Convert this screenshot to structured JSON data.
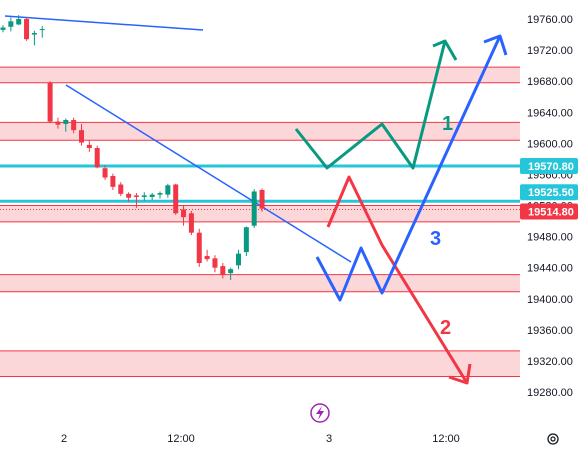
{
  "chart_data": {
    "type": "candlestick",
    "y_axis": {
      "ylim": [
        19250,
        19785
      ],
      "ticks": [
        19760,
        19720,
        19680,
        19640,
        19600,
        19560,
        19520,
        19480,
        19440,
        19400,
        19360,
        19320,
        19280
      ],
      "tick_labels": [
        "19760.00",
        "19720.00",
        "19680.00",
        "19640.00",
        "19600.00",
        "19560.00",
        "19520.00",
        "19480.00",
        "19440.00",
        "19400.00",
        "19360.00",
        "19320.00",
        "19280.00"
      ]
    },
    "x_axis": {
      "tick_labels": [
        "2",
        "12:00",
        "3",
        "12:00"
      ]
    },
    "price_badges": [
      {
        "value": "19570.80",
        "color": "#26c6da"
      },
      {
        "value": "19525.50",
        "color": "#26c6da"
      },
      {
        "value": "19514.80",
        "color": "#f23645"
      }
    ],
    "horizontal_lines": [
      {
        "price": 19570.8,
        "color": "#26c6da"
      },
      {
        "price": 19525.5,
        "color": "#26c6da"
      },
      {
        "price": 19514.8,
        "color": "#f23645",
        "style": "dotted"
      }
    ],
    "zones": [
      {
        "from": 19678,
        "to": 19698
      },
      {
        "from": 19604,
        "to": 19627
      },
      {
        "from": 19499,
        "to": 19520
      },
      {
        "from": 19409,
        "to": 19431
      },
      {
        "from": 19300,
        "to": 19333
      }
    ],
    "candles": [
      {
        "o": 19746,
        "h": 19752,
        "l": 19743,
        "c": 19749
      },
      {
        "o": 19750,
        "h": 19762,
        "l": 19744,
        "c": 19757
      },
      {
        "o": 19753,
        "h": 19765,
        "l": 19752,
        "c": 19760
      },
      {
        "o": 19760,
        "h": 19762,
        "l": 19732,
        "c": 19734
      },
      {
        "o": 19740,
        "h": 19745,
        "l": 19726,
        "c": 19742
      },
      {
        "o": 19747,
        "h": 19751,
        "l": 19736,
        "c": 19747
      },
      {
        "o": 19678,
        "h": 19680,
        "l": 19626,
        "c": 19628
      },
      {
        "o": 19628,
        "h": 19633,
        "l": 19619,
        "c": 19624
      },
      {
        "o": 19625,
        "h": 19632,
        "l": 19615,
        "c": 19630
      },
      {
        "o": 19630,
        "h": 19633,
        "l": 19613,
        "c": 19617
      },
      {
        "o": 19617,
        "h": 19625,
        "l": 19597,
        "c": 19601
      },
      {
        "o": 19598,
        "h": 19604,
        "l": 19589,
        "c": 19594
      },
      {
        "o": 19594,
        "h": 19597,
        "l": 19568,
        "c": 19569
      },
      {
        "o": 19568,
        "h": 19572,
        "l": 19553,
        "c": 19556
      },
      {
        "o": 19558,
        "h": 19561,
        "l": 19540,
        "c": 19544
      },
      {
        "o": 19547,
        "h": 19550,
        "l": 19532,
        "c": 19535
      },
      {
        "o": 19535,
        "h": 19537,
        "l": 19525,
        "c": 19530
      },
      {
        "o": 19533,
        "h": 19536,
        "l": 19517,
        "c": 19531
      },
      {
        "o": 19531,
        "h": 19537,
        "l": 19526,
        "c": 19533
      },
      {
        "o": 19531,
        "h": 19536,
        "l": 19527,
        "c": 19534
      },
      {
        "o": 19534,
        "h": 19538,
        "l": 19529,
        "c": 19536
      },
      {
        "o": 19534,
        "h": 19548,
        "l": 19530,
        "c": 19546
      },
      {
        "o": 19547,
        "h": 19548,
        "l": 19508,
        "c": 19510
      },
      {
        "o": 19515,
        "h": 19520,
        "l": 19494,
        "c": 19505
      },
      {
        "o": 19510,
        "h": 19513,
        "l": 19482,
        "c": 19485
      },
      {
        "o": 19485,
        "h": 19490,
        "l": 19441,
        "c": 19446
      },
      {
        "o": 19455,
        "h": 19463,
        "l": 19448,
        "c": 19451
      },
      {
        "o": 19452,
        "h": 19456,
        "l": 19434,
        "c": 19440
      },
      {
        "o": 19442,
        "h": 19446,
        "l": 19426,
        "c": 19431
      },
      {
        "o": 19433,
        "h": 19440,
        "l": 19424,
        "c": 19438
      },
      {
        "o": 19443,
        "h": 19463,
        "l": 19438,
        "c": 19458
      },
      {
        "o": 19460,
        "h": 19493,
        "l": 19455,
        "c": 19492
      },
      {
        "o": 19494,
        "h": 19541,
        "l": 19491,
        "c": 19538
      },
      {
        "o": 19540,
        "h": 19542,
        "l": 19512,
        "c": 19516
      }
    ],
    "scenario_labels": [
      {
        "text": "1",
        "color": "#089981"
      },
      {
        "text": "2",
        "color": "#f23645"
      },
      {
        "text": "3",
        "color": "#2962ff"
      }
    ]
  }
}
